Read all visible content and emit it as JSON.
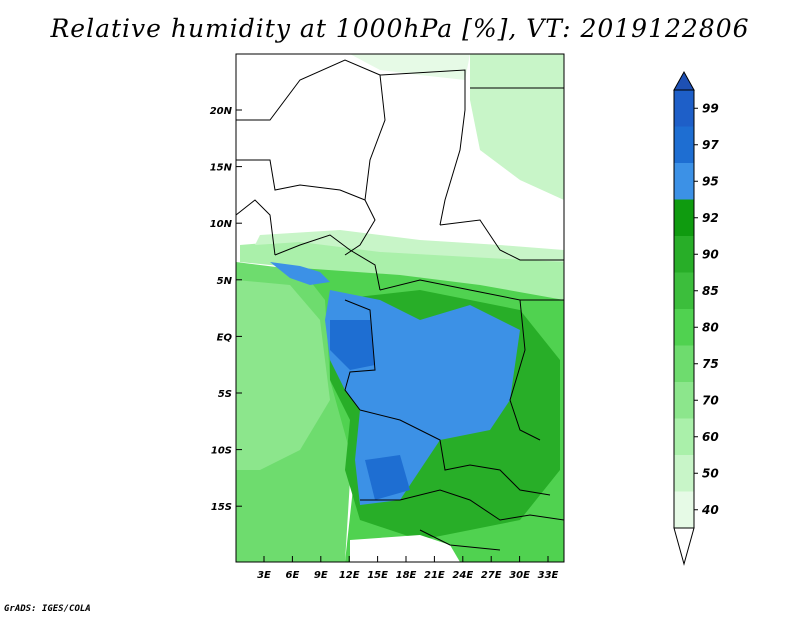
{
  "title": "Relative humidity at 1000hPa [%], VT: 2019122806",
  "credit": "GrADS: IGES/COLA",
  "map": {
    "lat_ticks": [
      "20N",
      "15N",
      "10N",
      "5N",
      "EQ",
      "5S",
      "10S",
      "15S"
    ],
    "lon_ticks": [
      "3E",
      "6E",
      "9E",
      "12E",
      "15E",
      "18E",
      "21E",
      "24E",
      "27E",
      "30E",
      "33E"
    ]
  },
  "colorbar": {
    "levels": [
      "99",
      "97",
      "95",
      "92",
      "90",
      "85",
      "80",
      "75",
      "70",
      "60",
      "50",
      "40"
    ],
    "colors": [
      "#1e5fc8",
      "#1e6ed2",
      "#3c91e6",
      "#0f9b0f",
      "#28ae28",
      "#3cbe3c",
      "#50d250",
      "#6edc6e",
      "#8ce68c",
      "#aaf0aa",
      "#c8f5c8",
      "#e6fae6"
    ],
    "top_color": "#1e50b4",
    "bottom_color": "#ffffff"
  }
}
